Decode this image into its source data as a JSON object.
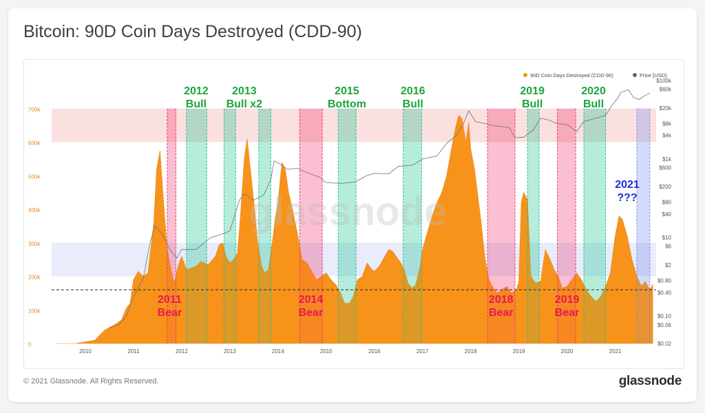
{
  "title": "Bitcoin: 90D Coin Days Destroyed (CDD-90)",
  "footer": {
    "copyright": "© 2021 Glassnode. All Rights Reserved.",
    "brand": "glassnode"
  },
  "watermark": "glassnode",
  "colors": {
    "cdd": "#f7931a",
    "price": "#707070",
    "bull": "#17c28f",
    "bear": "#f0356f",
    "bullText": "#1aa53a",
    "bearText": "#e8174f",
    "unknownText": "#1f2bd6",
    "topBand": "#fbe0e0",
    "lowBand": "#e8ecfb",
    "unknownZone": "#7d8bf0"
  },
  "chart_data": {
    "type": "area",
    "legend": [
      "90D Coin Days Destroyed (CDD-90)",
      "Price [USD]"
    ],
    "legend_position": "top-right",
    "x_ticks": [
      "2010",
      "2011",
      "2012",
      "2013",
      "2014",
      "2015",
      "2016",
      "2017",
      "2018",
      "2019",
      "2020",
      "2021"
    ],
    "y_left_ticks": [
      "0",
      "100k",
      "200k",
      "300k",
      "400k",
      "500k",
      "600k",
      "700k"
    ],
    "y_left_range": [
      0,
      800000
    ],
    "y_right_ticks": [
      "$0.02",
      "$0.06",
      "$0.10",
      "$0.40",
      "$0.80",
      "$2",
      "$6",
      "$10",
      "$40",
      "$80",
      "$200",
      "$600",
      "$1k",
      "$4k",
      "$8k",
      "$20k",
      "$60k",
      "$100k"
    ],
    "y_right_scale": "log",
    "threshold_line": 160000,
    "bands": [
      {
        "kind": "top",
        "from": 600000,
        "to": 700000
      },
      {
        "kind": "low",
        "from": 200000,
        "to": 300000
      }
    ],
    "series": [
      {
        "name": "90D Coin Days Destroyed (CDD-90)",
        "points": [
          [
            2009.4,
            0
          ],
          [
            2009.8,
            0
          ],
          [
            2010.2,
            10000
          ],
          [
            2010.4,
            40000
          ],
          [
            2010.6,
            55000
          ],
          [
            2010.75,
            70000
          ],
          [
            2010.85,
            105000
          ],
          [
            2010.93,
            120000
          ],
          [
            2011.0,
            190000
          ],
          [
            2011.1,
            215000
          ],
          [
            2011.2,
            200000
          ],
          [
            2011.3,
            210000
          ],
          [
            2011.42,
            360000
          ],
          [
            2011.48,
            520000
          ],
          [
            2011.55,
            575000
          ],
          [
            2011.62,
            430000
          ],
          [
            2011.7,
            280000
          ],
          [
            2011.78,
            220000
          ],
          [
            2011.85,
            180000
          ],
          [
            2011.92,
            230000
          ],
          [
            2012.0,
            260000
          ],
          [
            2012.1,
            220000
          ],
          [
            2012.2,
            225000
          ],
          [
            2012.3,
            230000
          ],
          [
            2012.4,
            245000
          ],
          [
            2012.55,
            235000
          ],
          [
            2012.7,
            260000
          ],
          [
            2012.78,
            295000
          ],
          [
            2012.85,
            300000
          ],
          [
            2012.92,
            260000
          ],
          [
            2013.0,
            240000
          ],
          [
            2013.08,
            250000
          ],
          [
            2013.16,
            270000
          ],
          [
            2013.22,
            380000
          ],
          [
            2013.3,
            550000
          ],
          [
            2013.36,
            610000
          ],
          [
            2013.42,
            530000
          ],
          [
            2013.5,
            420000
          ],
          [
            2013.58,
            300000
          ],
          [
            2013.66,
            230000
          ],
          [
            2013.72,
            210000
          ],
          [
            2013.8,
            220000
          ],
          [
            2013.88,
            300000
          ],
          [
            2013.95,
            380000
          ],
          [
            2014.0,
            420000
          ],
          [
            2014.08,
            540000
          ],
          [
            2014.15,
            520000
          ],
          [
            2014.22,
            450000
          ],
          [
            2014.3,
            400000
          ],
          [
            2014.4,
            330000
          ],
          [
            2014.5,
            250000
          ],
          [
            2014.6,
            240000
          ],
          [
            2014.7,
            215000
          ],
          [
            2014.8,
            190000
          ],
          [
            2014.9,
            200000
          ],
          [
            2015.0,
            210000
          ],
          [
            2015.1,
            190000
          ],
          [
            2015.2,
            175000
          ],
          [
            2015.3,
            150000
          ],
          [
            2015.38,
            120000
          ],
          [
            2015.48,
            120000
          ],
          [
            2015.56,
            140000
          ],
          [
            2015.65,
            190000
          ],
          [
            2015.75,
            200000
          ],
          [
            2015.85,
            240000
          ],
          [
            2015.95,
            220000
          ],
          [
            2016.0,
            215000
          ],
          [
            2016.1,
            230000
          ],
          [
            2016.2,
            255000
          ],
          [
            2016.3,
            280000
          ],
          [
            2016.38,
            275000
          ],
          [
            2016.45,
            260000
          ],
          [
            2016.55,
            240000
          ],
          [
            2016.62,
            220000
          ],
          [
            2016.7,
            180000
          ],
          [
            2016.78,
            165000
          ],
          [
            2016.86,
            175000
          ],
          [
            2016.95,
            230000
          ],
          [
            2017.0,
            280000
          ],
          [
            2017.1,
            330000
          ],
          [
            2017.2,
            380000
          ],
          [
            2017.3,
            420000
          ],
          [
            2017.4,
            450000
          ],
          [
            2017.5,
            500000
          ],
          [
            2017.6,
            580000
          ],
          [
            2017.68,
            640000
          ],
          [
            2017.75,
            680000
          ],
          [
            2017.82,
            670000
          ],
          [
            2017.9,
            600000
          ],
          [
            2017.96,
            660000
          ],
          [
            2018.0,
            580000
          ],
          [
            2018.08,
            520000
          ],
          [
            2018.15,
            440000
          ],
          [
            2018.22,
            360000
          ],
          [
            2018.3,
            250000
          ],
          [
            2018.38,
            190000
          ],
          [
            2018.45,
            170000
          ],
          [
            2018.55,
            150000
          ],
          [
            2018.65,
            160000
          ],
          [
            2018.75,
            170000
          ],
          [
            2018.85,
            150000
          ],
          [
            2018.95,
            160000
          ],
          [
            2019.0,
            185000
          ],
          [
            2019.05,
            420000
          ],
          [
            2019.1,
            450000
          ],
          [
            2019.18,
            430000
          ],
          [
            2019.25,
            200000
          ],
          [
            2019.35,
            180000
          ],
          [
            2019.45,
            185000
          ],
          [
            2019.55,
            280000
          ],
          [
            2019.65,
            250000
          ],
          [
            2019.75,
            215000
          ],
          [
            2019.82,
            200000
          ],
          [
            2019.9,
            165000
          ],
          [
            2020.0,
            170000
          ],
          [
            2020.1,
            190000
          ],
          [
            2020.2,
            210000
          ],
          [
            2020.3,
            190000
          ],
          [
            2020.4,
            160000
          ],
          [
            2020.5,
            140000
          ],
          [
            2020.6,
            125000
          ],
          [
            2020.7,
            140000
          ],
          [
            2020.8,
            170000
          ],
          [
            2020.9,
            210000
          ],
          [
            2021.0,
            320000
          ],
          [
            2021.08,
            380000
          ],
          [
            2021.15,
            370000
          ],
          [
            2021.25,
            320000
          ],
          [
            2021.35,
            250000
          ],
          [
            2021.45,
            200000
          ],
          [
            2021.55,
            170000
          ],
          [
            2021.62,
            185000
          ],
          [
            2021.68,
            170000
          ],
          [
            2021.72,
            160000
          ],
          [
            2021.78,
            175000
          ]
        ]
      },
      {
        "name": "Price [USD]",
        "points": [
          [
            2010.5,
            0.05
          ],
          [
            2010.7,
            0.06
          ],
          [
            2010.85,
            0.1
          ],
          [
            2011.0,
            0.3
          ],
          [
            2011.2,
            0.9
          ],
          [
            2011.35,
            8
          ],
          [
            2011.45,
            20
          ],
          [
            2011.6,
            12
          ],
          [
            2011.75,
            5
          ],
          [
            2011.9,
            3
          ],
          [
            2012.0,
            5
          ],
          [
            2012.3,
            5
          ],
          [
            2012.6,
            10
          ],
          [
            2012.9,
            13
          ],
          [
            2013.0,
            15
          ],
          [
            2013.2,
            90
          ],
          [
            2013.3,
            130
          ],
          [
            2013.5,
            90
          ],
          [
            2013.7,
            120
          ],
          [
            2013.85,
            300
          ],
          [
            2013.92,
            900
          ],
          [
            2014.0,
            800
          ],
          [
            2014.2,
            550
          ],
          [
            2014.4,
            580
          ],
          [
            2014.6,
            450
          ],
          [
            2014.85,
            350
          ],
          [
            2015.0,
            250
          ],
          [
            2015.3,
            240
          ],
          [
            2015.6,
            260
          ],
          [
            2015.85,
            380
          ],
          [
            2016.0,
            430
          ],
          [
            2016.3,
            420
          ],
          [
            2016.5,
            650
          ],
          [
            2016.8,
            700
          ],
          [
            2017.0,
            1000
          ],
          [
            2017.3,
            1200
          ],
          [
            2017.5,
            2500
          ],
          [
            2017.7,
            4000
          ],
          [
            2017.85,
            8000
          ],
          [
            2017.96,
            17000
          ],
          [
            2018.1,
            9000
          ],
          [
            2018.3,
            8000
          ],
          [
            2018.5,
            7000
          ],
          [
            2018.8,
            6400
          ],
          [
            2018.92,
            3500
          ],
          [
            2019.1,
            3600
          ],
          [
            2019.3,
            5500
          ],
          [
            2019.45,
            11000
          ],
          [
            2019.6,
            10000
          ],
          [
            2019.8,
            8000
          ],
          [
            2020.0,
            7500
          ],
          [
            2020.2,
            5000
          ],
          [
            2020.35,
            9000
          ],
          [
            2020.6,
            11000
          ],
          [
            2020.8,
            13000
          ],
          [
            2020.95,
            25000
          ],
          [
            2021.05,
            35000
          ],
          [
            2021.12,
            50000
          ],
          [
            2021.28,
            58000
          ],
          [
            2021.38,
            37000
          ],
          [
            2021.5,
            33000
          ],
          [
            2021.6,
            40000
          ],
          [
            2021.72,
            48000
          ]
        ]
      }
    ],
    "zones": [
      {
        "kind": "bear",
        "from": 2011.7,
        "to": 2011.88,
        "label": [
          "2011",
          "Bear"
        ],
        "label_x": 2011.75,
        "label_pos": "bottom"
      },
      {
        "kind": "bull",
        "from": 2012.1,
        "to": 2012.52,
        "label": [
          "2012",
          "Bull"
        ],
        "label_x": 2012.3,
        "label_pos": "top"
      },
      {
        "kind": "bull",
        "from": 2012.88,
        "to": 2013.12,
        "label": [
          "2013",
          "Bull x2"
        ],
        "label_x": 2013.3,
        "label_pos": "top"
      },
      {
        "kind": "bull",
        "from": 2013.6,
        "to": 2013.85,
        "label": null
      },
      {
        "kind": "bear",
        "from": 2014.45,
        "to": 2014.92,
        "label": [
          "2014",
          "Bear"
        ],
        "label_x": 2014.68,
        "label_pos": "bottom"
      },
      {
        "kind": "bull",
        "from": 2015.25,
        "to": 2015.62,
        "label": [
          "2015",
          "Bottom"
        ],
        "label_x": 2015.43,
        "label_pos": "top"
      },
      {
        "kind": "bull",
        "from": 2016.6,
        "to": 2016.98,
        "label": [
          "2016",
          "Bull"
        ],
        "label_x": 2016.8,
        "label_pos": "top"
      },
      {
        "kind": "bear",
        "from": 2018.35,
        "to": 2018.92,
        "label": [
          "2018",
          "Bear"
        ],
        "label_x": 2018.63,
        "label_pos": "bottom"
      },
      {
        "kind": "bull",
        "from": 2019.18,
        "to": 2019.42,
        "label": [
          "2019",
          "Bull"
        ],
        "label_x": 2019.28,
        "label_pos": "top"
      },
      {
        "kind": "bear",
        "from": 2019.8,
        "to": 2020.18,
        "label": [
          "2019",
          "Bear"
        ],
        "label_x": 2020.0,
        "label_pos": "bottom"
      },
      {
        "kind": "bull",
        "from": 2020.35,
        "to": 2020.8,
        "label": [
          "2020",
          "Bull"
        ],
        "label_x": 2020.55,
        "label_pos": "top"
      },
      {
        "kind": "unknown",
        "from": 2021.45,
        "to": 2021.72,
        "label": [
          "2021",
          "???"
        ],
        "label_x": 2021.25,
        "label_pos": "middle"
      }
    ]
  }
}
